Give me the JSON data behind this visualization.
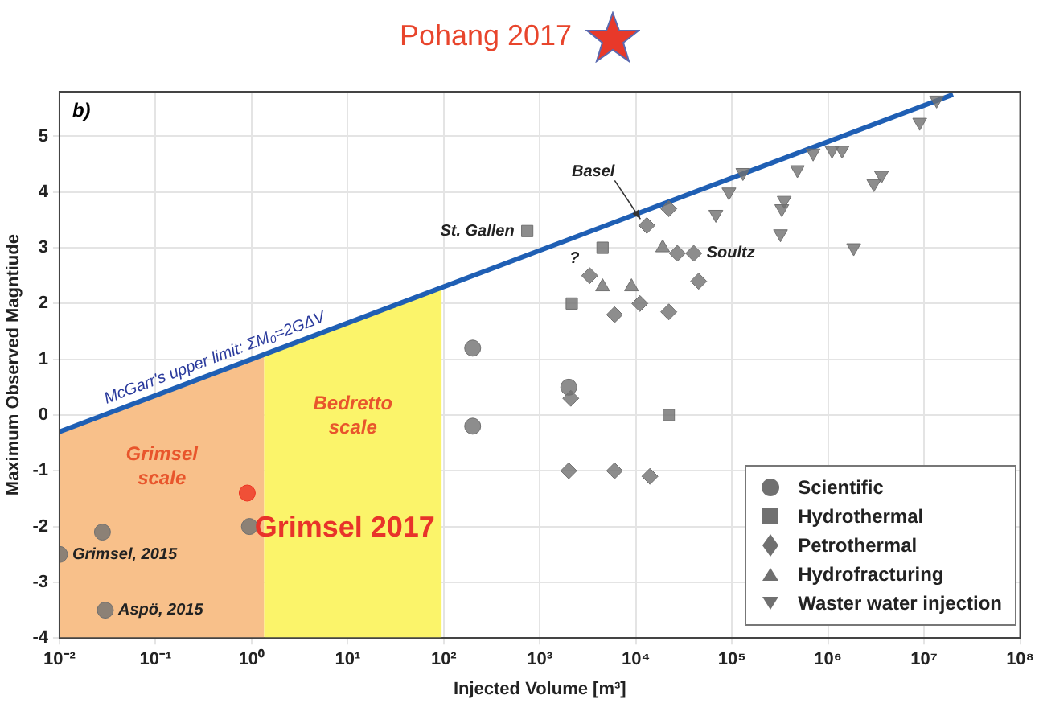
{
  "chart_data": {
    "type": "scatter",
    "title": "Pohang 2017",
    "xlabel": "Injected Volume [m³]",
    "ylabel": "Maximum Observed Magntiude",
    "xlim": [
      0.01,
      100000000
    ],
    "ylim": [
      -4,
      5.8
    ],
    "log": "x",
    "xticks": [
      {
        "value": 0.01,
        "label": "10⁻²"
      },
      {
        "value": 0.1,
        "label": "10⁻¹"
      },
      {
        "value": 1,
        "label": "10⁰"
      },
      {
        "value": 10,
        "label": "10¹"
      },
      {
        "value": 100,
        "label": "10²"
      },
      {
        "value": 1000,
        "label": "10³"
      },
      {
        "value": 10000,
        "label": "10⁴"
      },
      {
        "value": 100000,
        "label": "10⁵"
      },
      {
        "value": 1000000,
        "label": "10⁶"
      },
      {
        "value": 10000000,
        "label": "10⁷"
      },
      {
        "value": 100000000,
        "label": "10⁸"
      }
    ],
    "yticks": [
      -4,
      -3,
      -2,
      -1,
      0,
      1,
      2,
      3,
      4,
      5
    ],
    "grid": true,
    "legend": "bottom right",
    "series": [
      {
        "type": "line",
        "name": "McGarr's upper limit: ΣM₀=2GΔV",
        "color": "#1f5fb4",
        "marker": "none",
        "x": [
          0.01,
          20000000
        ],
        "values": [
          -0.3,
          5.75
        ]
      },
      {
        "name": "Scientific",
        "color": "#707070",
        "marker": "circle",
        "x": [
          200,
          200,
          2000,
          0.01,
          0.028,
          0.03,
          0.95
        ],
        "values": [
          1.2,
          -0.2,
          0.5,
          -2.5,
          -2.1,
          -3.5,
          -2.0
        ]
      },
      {
        "name": "Hydrothermal",
        "color": "#707070",
        "marker": "square",
        "x": [
          740,
          4500,
          2150,
          22000
        ],
        "values": [
          3.3,
          3.0,
          2.0,
          0.0
        ]
      },
      {
        "name": "Petrothermal",
        "color": "#707070",
        "marker": "diamond",
        "x": [
          13000,
          22000,
          27000,
          40000,
          3300,
          45000,
          11000,
          6000,
          22000,
          2100,
          2000,
          6000,
          14000
        ],
        "values": [
          3.4,
          3.7,
          2.9,
          2.9,
          2.5,
          2.4,
          2.0,
          1.8,
          1.85,
          0.3,
          -1.0,
          -1.0,
          -1.1
        ]
      },
      {
        "name": "Hydrofracturing",
        "color": "#707070",
        "marker": "triangle",
        "x": [
          19000,
          4500,
          9000
        ],
        "values": [
          3.0,
          2.3,
          2.3
        ]
      },
      {
        "name": "Waster water injection",
        "color": "#707070",
        "marker": "triangle-down",
        "x": [
          93000,
          68000,
          130000,
          320000,
          330000,
          350000,
          480000,
          700000,
          1100000,
          1400000,
          1850000,
          3000000,
          3600000,
          9000000,
          13500000
        ],
        "values": [
          4.0,
          3.6,
          4.35,
          3.25,
          3.7,
          3.85,
          4.4,
          4.7,
          4.75,
          4.75,
          3.0,
          4.15,
          4.3,
          5.25,
          5.65
        ]
      },
      {
        "color": "#ee3322",
        "marker": "circle",
        "x": [
          0.9
        ],
        "values": [
          -1.4
        ]
      }
    ],
    "bands": [
      {
        "axis": "x",
        "from": 0.01,
        "to": 1.35,
        "label": "Grimsel scale",
        "color": "#f8c08a"
      },
      {
        "axis": "x",
        "from": 1.35,
        "to": 95,
        "label": "Bedretto scale",
        "color": "#fbf46a"
      }
    ],
    "annotations": [
      "b)",
      "Grimsel 2017",
      {
        "text": "St. Gallen",
        "x": 740,
        "y": 3.3
      },
      {
        "text": "?",
        "x": 2300,
        "y": 3.19
      },
      {
        "text": "Basel",
        "x": 13000,
        "y": 3.4
      },
      {
        "text": "Soultz",
        "x": 40000,
        "y": 2.9
      },
      {
        "text": "Grimsel, 2015",
        "x": 0.01,
        "y": -2.5
      },
      {
        "text": "Aspö, 2015",
        "x": 0.03,
        "y": -3.5
      }
    ]
  }
}
